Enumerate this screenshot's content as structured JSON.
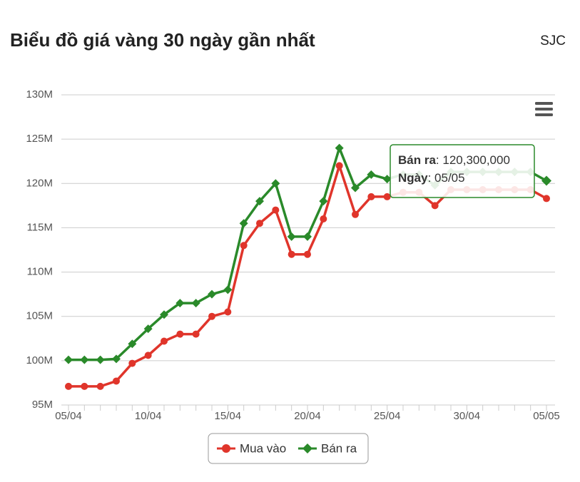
{
  "header": {
    "title": "Biểu đồ giá vàng 30 ngày gần nhất",
    "brand": "SJC"
  },
  "chart_data": {
    "type": "line",
    "categories": [
      "05/04",
      null,
      null,
      null,
      null,
      "10/04",
      null,
      null,
      null,
      null,
      "15/04",
      null,
      null,
      null,
      null,
      "20/04",
      null,
      null,
      null,
      null,
      "25/04",
      null,
      null,
      null,
      null,
      "30/04",
      null,
      null,
      null,
      null,
      "05/05"
    ],
    "series": [
      {
        "name": "Mua vào",
        "color": "#e0352b",
        "marker": "circle",
        "values": [
          97100000,
          97100000,
          97100000,
          97700000,
          99700000,
          100600000,
          102200000,
          103000000,
          103000000,
          105000000,
          105500000,
          113000000,
          115500000,
          117000000,
          112000000,
          112000000,
          116000000,
          122000000,
          116500000,
          118500000,
          118500000,
          119000000,
          119000000,
          117500000,
          119300000,
          119300000,
          119300000,
          119300000,
          119300000,
          119300000,
          118300000
        ]
      },
      {
        "name": "Bán ra",
        "color": "#2a8a2a",
        "marker": "diamond",
        "values": [
          100100000,
          100100000,
          100100000,
          100200000,
          101900000,
          103600000,
          105200000,
          106500000,
          106500000,
          107500000,
          108000000,
          115500000,
          118000000,
          120000000,
          114000000,
          114000000,
          118000000,
          124000000,
          119500000,
          121000000,
          120500000,
          121000000,
          121000000,
          119800000,
          121300000,
          121300000,
          121300000,
          121300000,
          121300000,
          121300000,
          120300000
        ]
      }
    ],
    "ylim": [
      95000000,
      130000000
    ],
    "yticks": [
      {
        "value": 95000000,
        "label": "95M"
      },
      {
        "value": 100000000,
        "label": "100M"
      },
      {
        "value": 105000000,
        "label": "105M"
      },
      {
        "value": 110000000,
        "label": "110M"
      },
      {
        "value": 115000000,
        "label": "115M"
      },
      {
        "value": 120000000,
        "label": "120M"
      },
      {
        "value": 125000000,
        "label": "125M"
      },
      {
        "value": 130000000,
        "label": "130M"
      }
    ],
    "grid": true,
    "tooltip": {
      "series": "Bán ra",
      "value_label": "120,300,000",
      "date_label": "Ngày",
      "date": "05/05"
    }
  }
}
